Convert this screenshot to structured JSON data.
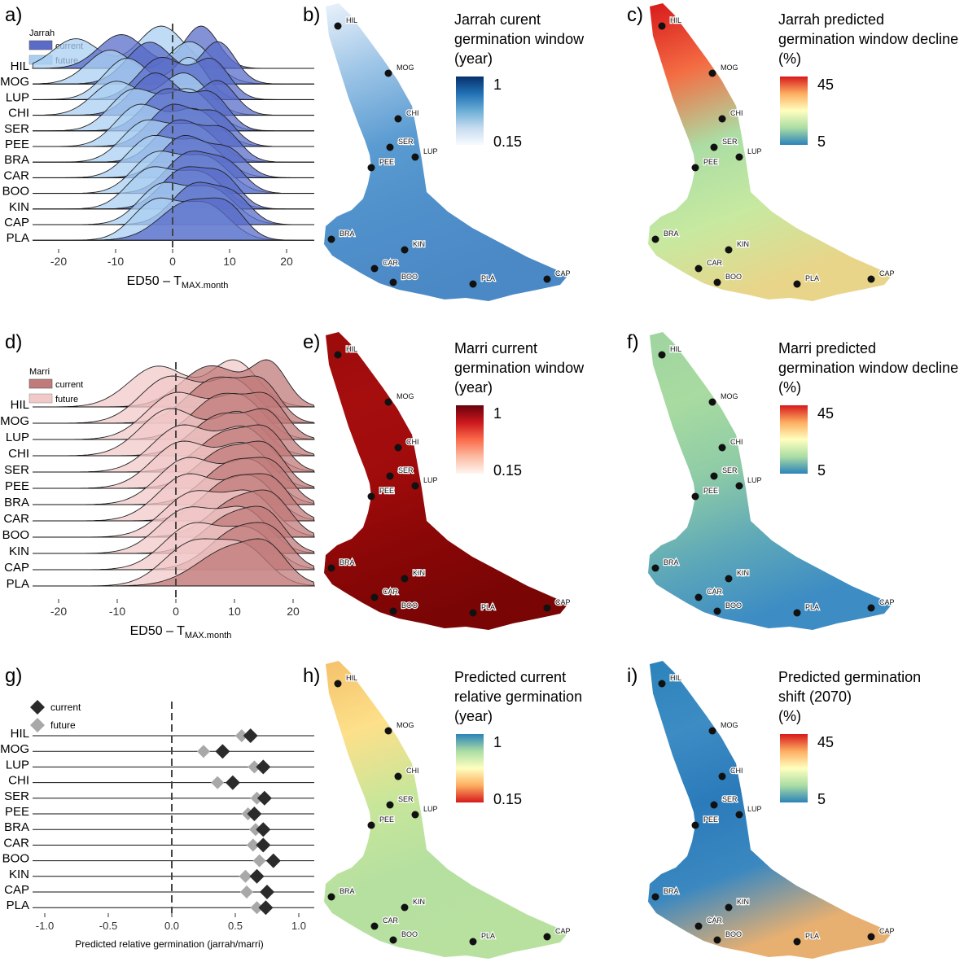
{
  "panel_letters": [
    "a)",
    "b)",
    "c)",
    "d)",
    "e)",
    "f)",
    "g)",
    "h)",
    "i)"
  ],
  "sites": [
    "HIL",
    "MOG",
    "LUP",
    "CHI",
    "SER",
    "PEE",
    "BRA",
    "CAR",
    "BOO",
    "KIN",
    "CAP",
    "PLA"
  ],
  "colors": {
    "jarrah_current": "#5a6cc8",
    "jarrah_future": "#a9cff2",
    "marri_current": "#c07a7a",
    "marri_future": "#f2c9c9",
    "diamond_current": "#2b2b2b",
    "diamond_future": "#a8a8a8"
  },
  "chart_data": [
    {
      "panel": "a",
      "type": "area",
      "legend_title": "Jarrah",
      "series": [
        {
          "name": "current"
        },
        {
          "name": "future"
        }
      ],
      "xlabel": "ED50 – T",
      "xlabel_sub": "MAX.month",
      "xticks": [
        -20,
        -10,
        0,
        10,
        20
      ],
      "xlim": [
        -25,
        25
      ],
      "ridges": [
        {
          "site": "HIL",
          "current_peaks": [
            [
              -9,
              0.8,
              4
            ],
            [
              5,
              1.0,
              3
            ]
          ],
          "future_peaks": [
            [
              -17,
              0.7,
              4
            ],
            [
              -2,
              1.0,
              4
            ]
          ]
        },
        {
          "site": "MOG",
          "current_peaks": [
            [
              -4,
              0.9,
              4
            ],
            [
              8,
              0.9,
              3
            ]
          ],
          "future_peaks": [
            [
              -11,
              0.8,
              4
            ],
            [
              3,
              1.0,
              4
            ]
          ]
        },
        {
          "site": "LUP",
          "current_peaks": [
            [
              -2,
              1.0,
              4
            ],
            [
              7,
              0.9,
              3
            ]
          ],
          "future_peaks": [
            [
              -8,
              0.9,
              4
            ],
            [
              3,
              0.9,
              3
            ]
          ]
        },
        {
          "site": "CHI",
          "current_peaks": [
            [
              -3,
              1.0,
              4
            ],
            [
              8,
              0.8,
              3
            ]
          ],
          "future_peaks": [
            [
              -10,
              0.8,
              4
            ],
            [
              2,
              1.0,
              4
            ]
          ]
        },
        {
          "site": "SER",
          "current_peaks": [
            [
              -1,
              1.0,
              4
            ],
            [
              7,
              0.8,
              3
            ]
          ],
          "future_peaks": [
            [
              -7,
              0.9,
              4
            ],
            [
              3,
              0.9,
              4
            ]
          ]
        },
        {
          "site": "PEE",
          "current_peaks": [
            [
              0,
              1.0,
              4
            ],
            [
              8,
              0.7,
              3
            ]
          ],
          "future_peaks": [
            [
              -6,
              0.9,
              4
            ],
            [
              4,
              0.8,
              4
            ]
          ]
        },
        {
          "site": "BRA",
          "current_peaks": [
            [
              1,
              1.0,
              4
            ],
            [
              9,
              0.7,
              3
            ]
          ],
          "future_peaks": [
            [
              -5,
              0.9,
              4
            ],
            [
              4,
              0.8,
              4
            ]
          ]
        },
        {
          "site": "CAR",
          "current_peaks": [
            [
              2,
              1.0,
              4
            ],
            [
              10,
              0.6,
              3
            ]
          ],
          "future_peaks": [
            [
              -4,
              0.9,
              4
            ],
            [
              5,
              0.8,
              4
            ]
          ]
        },
        {
          "site": "BOO",
          "current_peaks": [
            [
              3,
              1.0,
              4
            ],
            [
              10,
              0.6,
              3
            ]
          ],
          "future_peaks": [
            [
              -3,
              0.9,
              4
            ],
            [
              6,
              0.8,
              4
            ]
          ]
        },
        {
          "site": "KIN",
          "current_peaks": [
            [
              2,
              1.0,
              4
            ],
            [
              9,
              0.7,
              3
            ]
          ],
          "future_peaks": [
            [
              -4,
              0.9,
              4
            ],
            [
              5,
              0.8,
              4
            ]
          ]
        },
        {
          "site": "CAP",
          "current_peaks": [
            [
              4,
              1.0,
              4
            ],
            [
              11,
              0.6,
              3
            ]
          ],
          "future_peaks": [
            [
              -2,
              0.9,
              4
            ],
            [
              7,
              0.8,
              4
            ]
          ]
        },
        {
          "site": "PLA",
          "current_peaks": [
            [
              3,
              1.0,
              5
            ],
            [
              10,
              0.6,
              3
            ]
          ],
          "future_peaks": [
            [
              -3,
              0.9,
              4
            ],
            [
              6,
              0.8,
              4
            ]
          ]
        }
      ]
    },
    {
      "panel": "d",
      "type": "area",
      "legend_title": "Marri",
      "series": [
        {
          "name": "current"
        },
        {
          "name": "future"
        }
      ],
      "xlabel": "ED50 – T",
      "xlabel_sub": "MAX.month",
      "xticks": [
        -20,
        -10,
        0,
        10,
        20
      ],
      "xlim": [
        -25,
        25
      ],
      "ridges": [
        {
          "site": "HIL",
          "current_peaks": [
            [
              6,
              0.9,
              5
            ],
            [
              16,
              0.9,
              3
            ]
          ],
          "future_peaks": [
            [
              -3,
              0.8,
              5
            ],
            [
              10,
              0.9,
              4
            ]
          ]
        },
        {
          "site": "MOG",
          "current_peaks": [
            [
              7,
              1.0,
              5
            ],
            [
              15,
              0.7,
              3
            ]
          ],
          "future_peaks": [
            [
              -1,
              0.9,
              5
            ],
            [
              10,
              0.8,
              4
            ]
          ]
        },
        {
          "site": "LUP",
          "current_peaks": [
            [
              8,
              1.0,
              5
            ],
            [
              16,
              0.7,
              3
            ]
          ],
          "future_peaks": [
            [
              0,
              0.9,
              5
            ],
            [
              11,
              0.8,
              4
            ]
          ]
        },
        {
          "site": "CHI",
          "current_peaks": [
            [
              8,
              1.0,
              5
            ],
            [
              16,
              0.8,
              3
            ]
          ],
          "future_peaks": [
            [
              -1,
              0.9,
              5
            ],
            [
              11,
              0.8,
              4
            ]
          ]
        },
        {
          "site": "SER",
          "current_peaks": [
            [
              9,
              1.0,
              5
            ],
            [
              16,
              0.7,
              3
            ]
          ],
          "future_peaks": [
            [
              1,
              0.9,
              5
            ],
            [
              12,
              0.8,
              4
            ]
          ]
        },
        {
          "site": "PEE",
          "current_peaks": [
            [
              9,
              1.0,
              5
            ],
            [
              16,
              0.7,
              3
            ]
          ],
          "future_peaks": [
            [
              1,
              0.9,
              5
            ],
            [
              12,
              0.8,
              4
            ]
          ]
        },
        {
          "site": "BRA",
          "current_peaks": [
            [
              10,
              1.0,
              5
            ],
            [
              17,
              0.6,
              3
            ]
          ],
          "future_peaks": [
            [
              2,
              0.9,
              5
            ],
            [
              13,
              0.8,
              4
            ]
          ]
        },
        {
          "site": "CAR",
          "current_peaks": [
            [
              10,
              1.0,
              5
            ],
            [
              17,
              0.6,
              3
            ]
          ],
          "future_peaks": [
            [
              2,
              0.9,
              5
            ],
            [
              13,
              0.8,
              4
            ]
          ]
        },
        {
          "site": "BOO",
          "current_peaks": [
            [
              11,
              1.0,
              5
            ],
            [
              17,
              0.6,
              3
            ]
          ],
          "future_peaks": [
            [
              3,
              0.9,
              5
            ],
            [
              13,
              0.8,
              4
            ]
          ]
        },
        {
          "site": "KIN",
          "current_peaks": [
            [
              10,
              1.0,
              5
            ],
            [
              16,
              0.6,
              3
            ]
          ],
          "future_peaks": [
            [
              2,
              0.9,
              5
            ],
            [
              12,
              0.8,
              4
            ]
          ]
        },
        {
          "site": "CAP",
          "current_peaks": [
            [
              11,
              1.0,
              5
            ],
            [
              17,
              0.5,
              3
            ]
          ],
          "future_peaks": [
            [
              3,
              0.9,
              5
            ],
            [
              13,
              0.7,
              4
            ]
          ]
        },
        {
          "site": "PLA",
          "current_peaks": [
            [
              10,
              1.0,
              6
            ],
            [
              16,
              0.5,
              3
            ]
          ],
          "future_peaks": [
            [
              3,
              0.9,
              5
            ],
            [
              12,
              0.7,
              4
            ]
          ]
        }
      ]
    },
    {
      "panel": "g",
      "type": "scatter",
      "series": [
        {
          "name": "current",
          "values": [
            0.62,
            0.4,
            0.72,
            0.48,
            0.73,
            0.65,
            0.72,
            0.72,
            0.8,
            0.67,
            0.75,
            0.74
          ]
        },
        {
          "name": "future",
          "values": [
            0.55,
            0.25,
            0.65,
            0.36,
            0.67,
            0.6,
            0.66,
            0.64,
            0.69,
            0.58,
            0.59,
            0.67
          ]
        }
      ],
      "xlabel": "Predicted relative germination (jarrah/marri)",
      "xticks": [
        -1.0,
        -0.5,
        0.0,
        0.5,
        1.0
      ],
      "xtick_labels": [
        "-1.0",
        "-0.5",
        "0.0",
        "0.5",
        "1.0"
      ],
      "xlim": [
        -1.1,
        1.15
      ]
    }
  ],
  "maps": [
    {
      "panel": "b",
      "title_lines": [
        "Jarrah curent",
        "germination window",
        "(year)"
      ],
      "scale_max": "1",
      "scale_min": "0.15",
      "palette": "blues",
      "colorbar_stops": [
        "#08306b",
        "#2171b5",
        "#6baed6",
        "#c6dbef",
        "#f7fbff"
      ]
    },
    {
      "panel": "c",
      "title_lines": [
        "Jarrah predicted",
        "germination window decline",
        "(%)"
      ],
      "scale_max": "45",
      "scale_min": "5",
      "palette": "spectral",
      "colorbar_stops": [
        "#d7191c",
        "#fdae61",
        "#ffffbf",
        "#abdda4",
        "#2b83ba"
      ]
    },
    {
      "panel": "e",
      "title_lines": [
        "Marri current",
        "germination window",
        "(year)"
      ],
      "scale_max": "1",
      "scale_min": "0.15",
      "palette": "reds",
      "colorbar_stops": [
        "#67000d",
        "#cb181d",
        "#fb6a4a",
        "#fcbba1",
        "#fff5f0"
      ]
    },
    {
      "panel": "f",
      "title_lines": [
        "Marri predicted",
        "germination window decline",
        "(%)"
      ],
      "scale_max": "45",
      "scale_min": "5",
      "palette": "spectral",
      "colorbar_stops": [
        "#d7191c",
        "#fdae61",
        "#ffffbf",
        "#abdda4",
        "#2b83ba"
      ]
    },
    {
      "panel": "h",
      "title_lines": [
        "Predicted current",
        "relative germination",
        "(year)"
      ],
      "scale_max": "1",
      "scale_min": "0.15",
      "palette": "spectral_rev",
      "colorbar_stops": [
        "#2b83ba",
        "#abdda4",
        "#ffffbf",
        "#fdae61",
        "#d7191c"
      ]
    },
    {
      "panel": "i",
      "title_lines": [
        "Predicted  germination",
        "shift (2070)",
        "(%)"
      ],
      "scale_max": "45",
      "scale_min": "5",
      "palette": "spectral",
      "colorbar_stops": [
        "#d7191c",
        "#fdae61",
        "#ffffbf",
        "#abdda4",
        "#2b83ba"
      ]
    }
  ],
  "map_sites": [
    "HIL",
    "MOG",
    "CHI",
    "SER",
    "LUP",
    "PEE",
    "BRA",
    "KIN",
    "CAR",
    "BOO",
    "PLA",
    "CAP"
  ]
}
